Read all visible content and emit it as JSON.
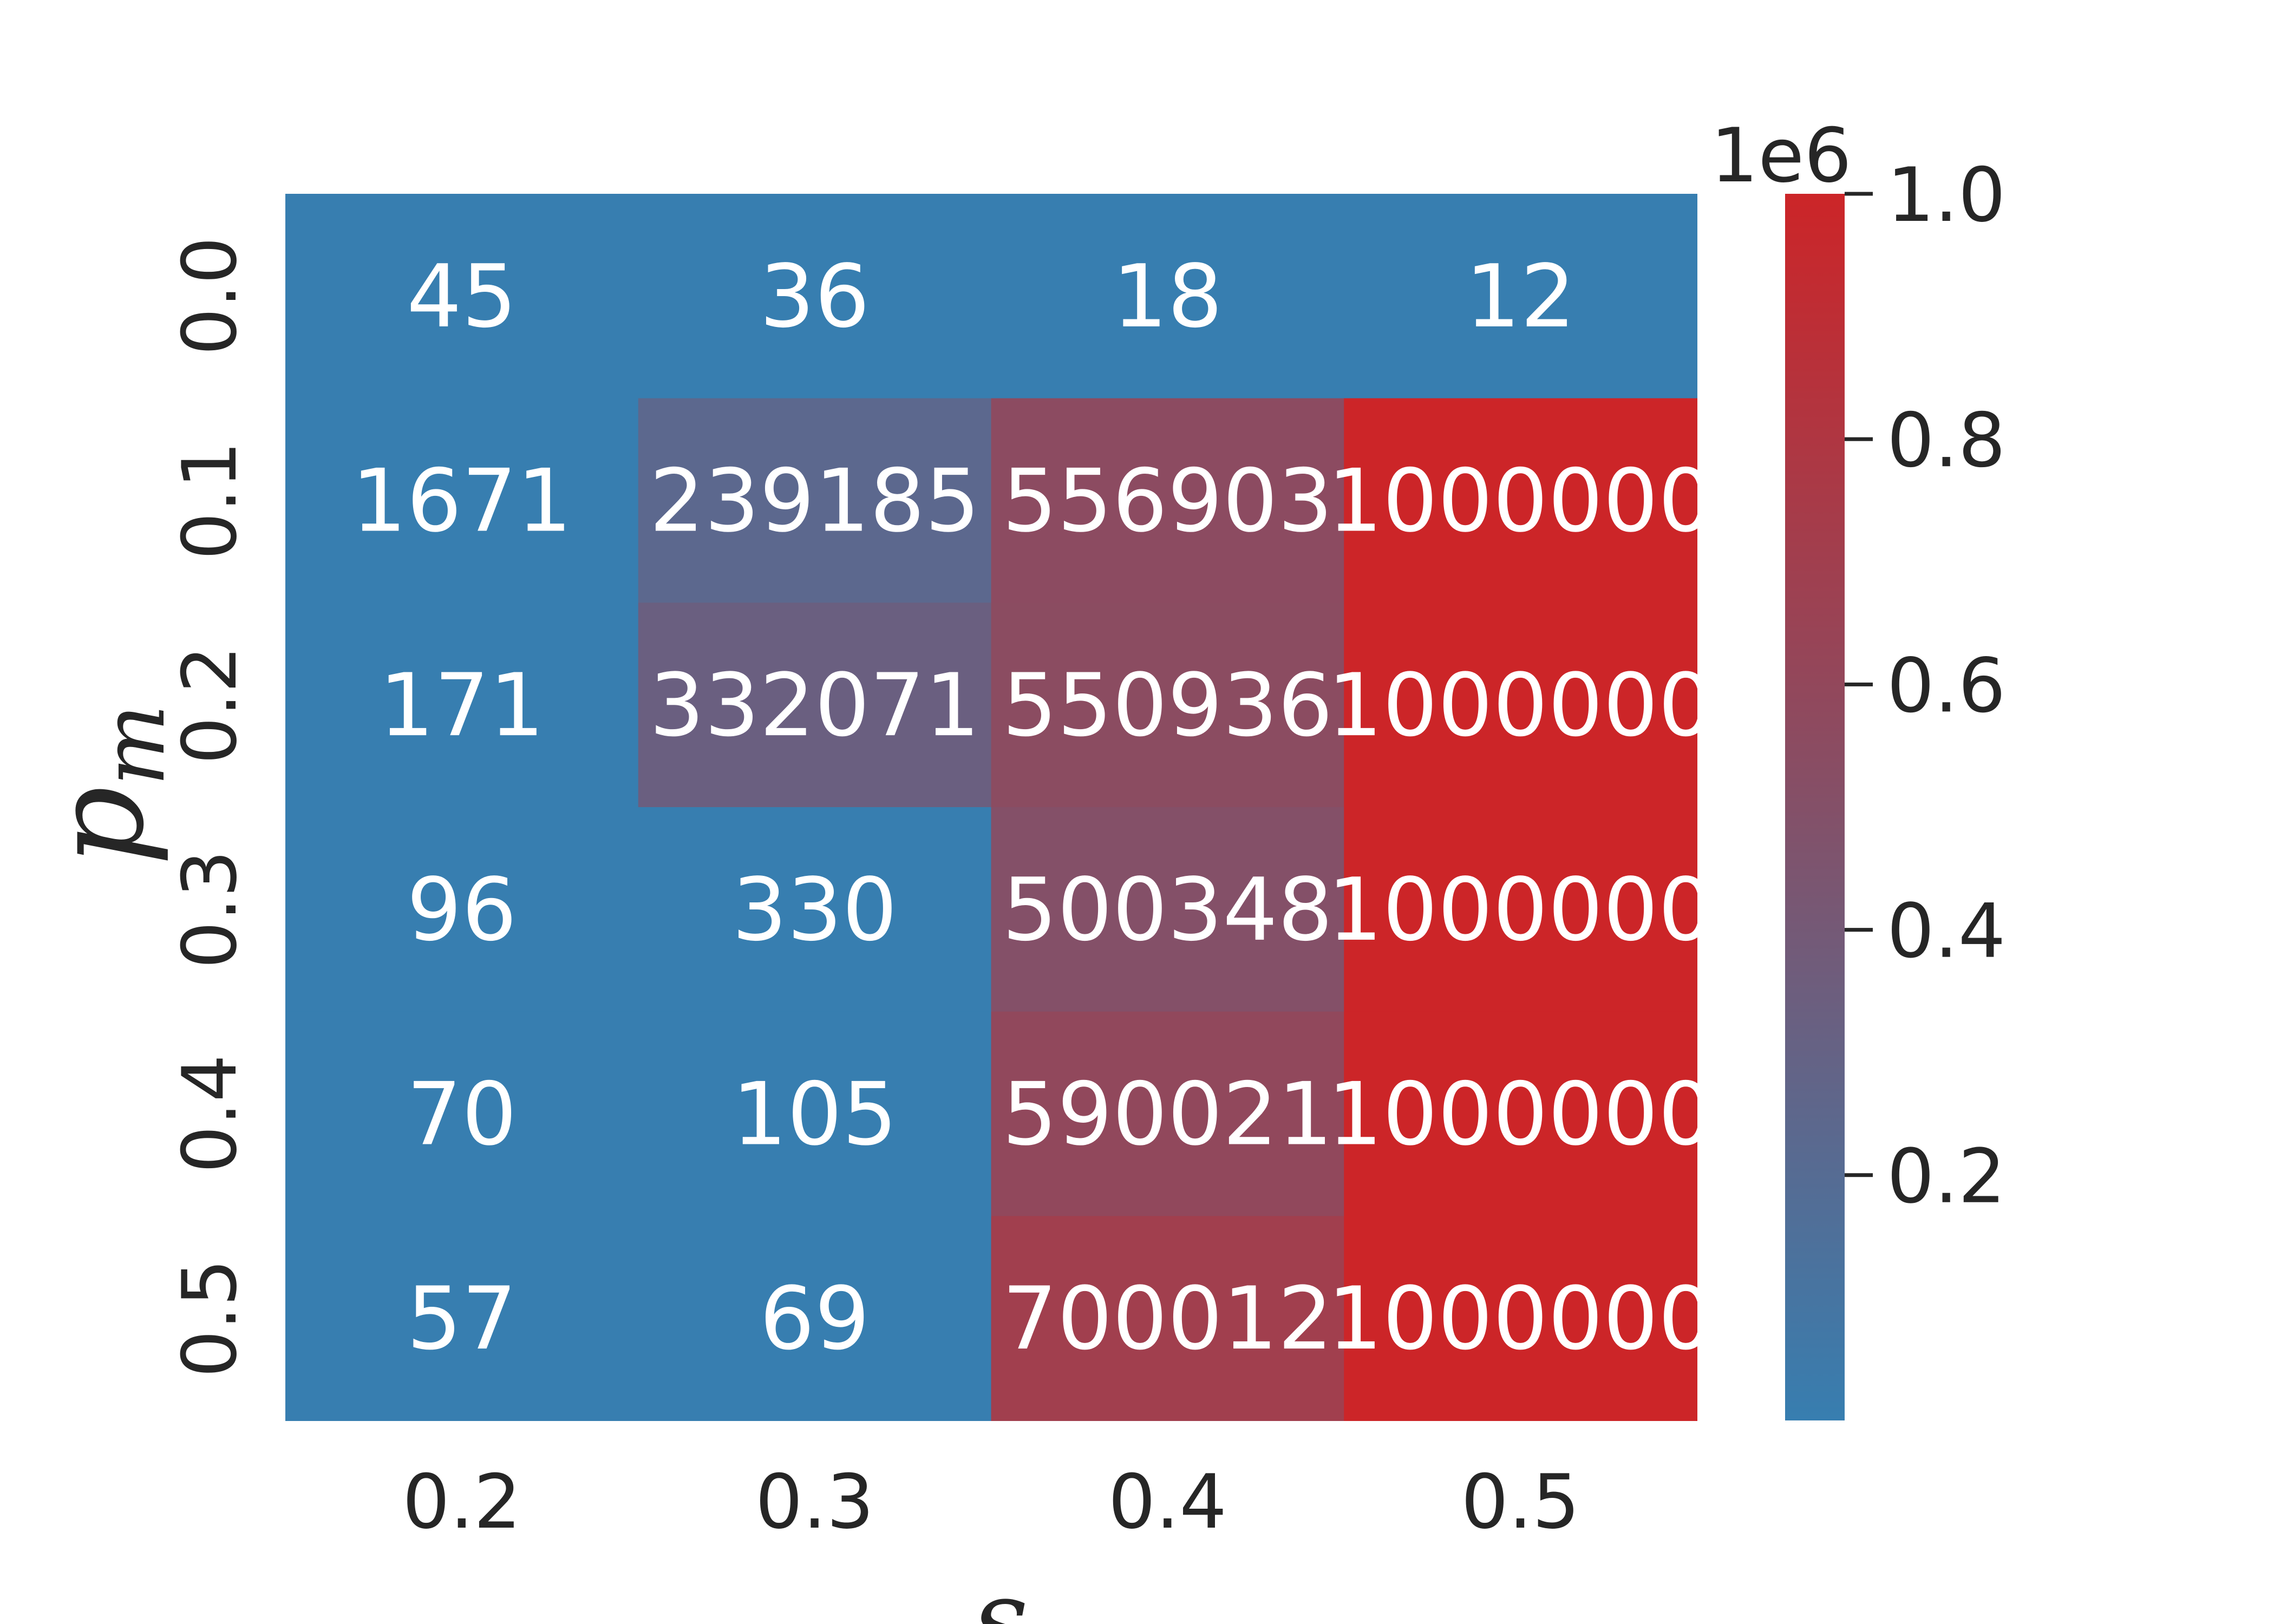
{
  "chart_data": {
    "type": "heatmap",
    "xlabel": "s",
    "ylabel": "p",
    "ylabel_subscript": "m",
    "x_categories": [
      "0.2",
      "0.3",
      "0.4",
      "0.5"
    ],
    "y_categories": [
      "0.0",
      "0.1",
      "0.2",
      "0.3",
      "0.4",
      "0.5"
    ],
    "values": [
      [
        45,
        36,
        18,
        12
      ],
      [
        1671,
        239185,
        556903,
        1000000
      ],
      [
        171,
        332071,
        550936,
        1000000
      ],
      [
        96,
        330,
        500348,
        1000000
      ],
      [
        70,
        105,
        590021,
        1000000
      ],
      [
        57,
        69,
        700012,
        1000000
      ]
    ],
    "colorbar": {
      "min": 0,
      "max": 1000000,
      "offset_text": "1e6",
      "ticks": [
        "0.2",
        "0.4",
        "0.6",
        "0.8",
        "1.0"
      ],
      "colors": {
        "low": "#377eb0",
        "mid": "#845068",
        "high": "#cc2528"
      }
    },
    "annotation_color": "#ffffff",
    "grid": false
  }
}
